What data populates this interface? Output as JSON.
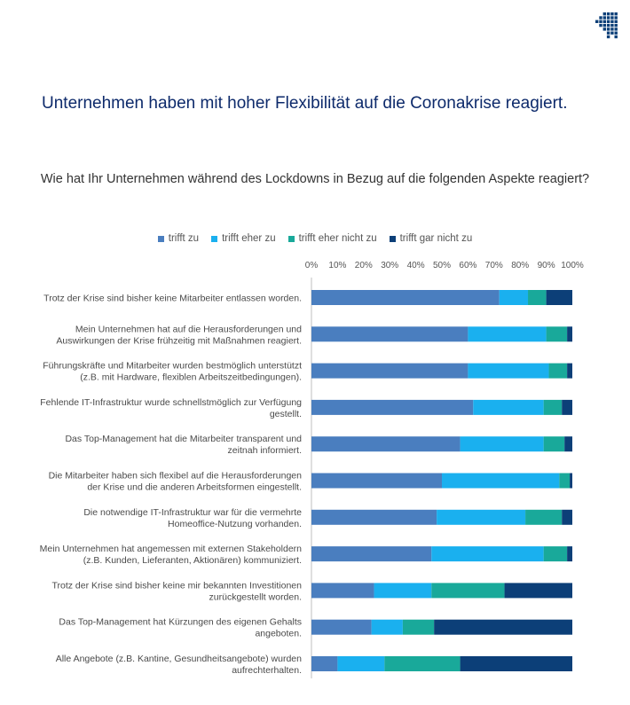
{
  "header": {
    "title": "Unternehmen haben mit hoher Flexibilität auf die Coronakrise reagiert.",
    "logo_icon": "grid-logo-icon"
  },
  "chart_data": {
    "type": "bar",
    "orientation": "horizontal",
    "stacked": true,
    "title": "Wie hat Ihr Unternehmen während des Lockdowns in Bezug auf die folgenden Aspekte reagiert?",
    "xlim": [
      0,
      100
    ],
    "xticks": [
      "0%",
      "10%",
      "20%",
      "30%",
      "40%",
      "50%",
      "60%",
      "70%",
      "80%",
      "90%",
      "100%"
    ],
    "legend_position": "top",
    "categories": [
      [
        "Trotz der Krise sind bisher keine Mitarbeiter entlassen worden."
      ],
      [
        "Mein Unternehmen hat auf die Herausforderungen und",
        "Auswirkungen der Krise frühzeitig mit Maßnahmen reagiert."
      ],
      [
        "Führungskräfte und Mitarbeiter wurden bestmöglich unterstützt",
        "(z.B. mit Hardware, flexiblen Arbeitszeitbedingungen)."
      ],
      [
        "Fehlende IT-Infrastruktur wurde schnellstmöglich zur Verfügung",
        "gestellt."
      ],
      [
        "Das Top-Management hat die Mitarbeiter transparent und",
        "zeitnah informiert."
      ],
      [
        "Die Mitarbeiter haben sich flexibel auf die Herausforderungen",
        "der Krise und die anderen Arbeitsformen eingestellt."
      ],
      [
        "Die notwendige IT-Infrastruktur war für die vermehrte",
        "Homeoffice-Nutzung vorhanden."
      ],
      [
        "Mein Unternehmen hat angemessen mit externen Stakeholdern",
        "(z.B. Kunden, Lieferanten, Aktionären) kommuniziert."
      ],
      [
        "Trotz der Krise sind bisher keine mir bekannten Investitionen",
        "zurückgestellt worden."
      ],
      [
        "Das Top-Management hat Kürzungen des eigenen Gehalts",
        "angeboten."
      ],
      [
        "Alle Angebote (z.B. Kantine, Gesundheitsangebote) wurden",
        "aufrechterhalten."
      ]
    ],
    "series": [
      {
        "name": "trifft zu",
        "color": "#4a7ebf",
        "values": [
          72,
          60,
          60,
          62,
          57,
          50,
          48,
          46,
          24,
          23,
          10
        ]
      },
      {
        "name": "trifft eher zu",
        "color": "#1ab0ef",
        "values": [
          11,
          30,
          31,
          27,
          32,
          45,
          34,
          43,
          22,
          12,
          18
        ]
      },
      {
        "name": "trifft eher nicht zu",
        "color": "#19a99a",
        "values": [
          7,
          8,
          7,
          7,
          8,
          4,
          14,
          9,
          28,
          12,
          29
        ]
      },
      {
        "name": "trifft gar nicht zu",
        "color": "#0c3f78",
        "values": [
          10,
          2,
          2,
          4,
          3,
          1,
          4,
          2,
          26,
          53,
          43
        ]
      }
    ]
  }
}
